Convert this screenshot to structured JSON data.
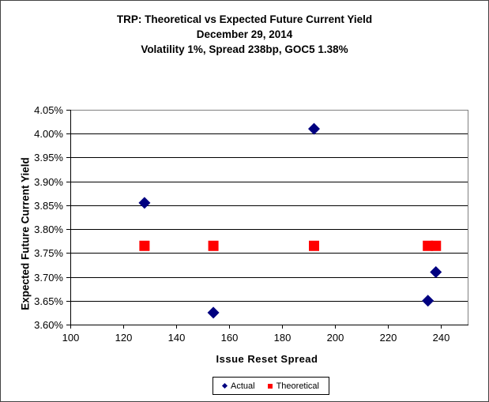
{
  "chart_data": {
    "type": "scatter",
    "title_lines": [
      "TRP: Theoretical vs Expected Future Current Yield",
      "December 29, 2014",
      "Volatility 1%, Spread 238bp, GOC5 1.38%"
    ],
    "xlabel": "Issue Reset Spread",
    "ylabel": "Expected Future Current Yield",
    "xlim": [
      100,
      250
    ],
    "ylim": [
      3.6,
      4.05
    ],
    "x_ticks": [
      100,
      120,
      140,
      160,
      180,
      200,
      220,
      240
    ],
    "y_ticks": [
      {
        "value": 4.05,
        "label": "4.05%"
      },
      {
        "value": 4.0,
        "label": "4.00%"
      },
      {
        "value": 3.95,
        "label": "3.95%"
      },
      {
        "value": 3.9,
        "label": "3.90%"
      },
      {
        "value": 3.85,
        "label": "3.85%"
      },
      {
        "value": 3.8,
        "label": "3.80%"
      },
      {
        "value": 3.75,
        "label": "3.75%"
      },
      {
        "value": 3.7,
        "label": "3.70%"
      },
      {
        "value": 3.65,
        "label": "3.65%"
      },
      {
        "value": 3.6,
        "label": "3.60%"
      }
    ],
    "grid": "horizontal",
    "legend_position": "bottom-center",
    "series": [
      {
        "name": "Actual",
        "marker": "diamond",
        "color": "#000080",
        "points": [
          {
            "x": 128,
            "y": 3.855
          },
          {
            "x": 154,
            "y": 3.625
          },
          {
            "x": 192,
            "y": 4.01
          },
          {
            "x": 235,
            "y": 3.65
          },
          {
            "x": 238,
            "y": 3.71
          }
        ]
      },
      {
        "name": "Theoretical",
        "marker": "square",
        "color": "#FF0000",
        "points": [
          {
            "x": 128,
            "y": 3.765
          },
          {
            "x": 154,
            "y": 3.765
          },
          {
            "x": 192,
            "y": 3.765
          },
          {
            "x": 235,
            "y": 3.765
          },
          {
            "x": 238,
            "y": 3.765
          }
        ]
      }
    ],
    "colors": {
      "gridline": "#000000",
      "plot_border": "#808080",
      "axis": "#000000",
      "text": "#000000"
    }
  }
}
